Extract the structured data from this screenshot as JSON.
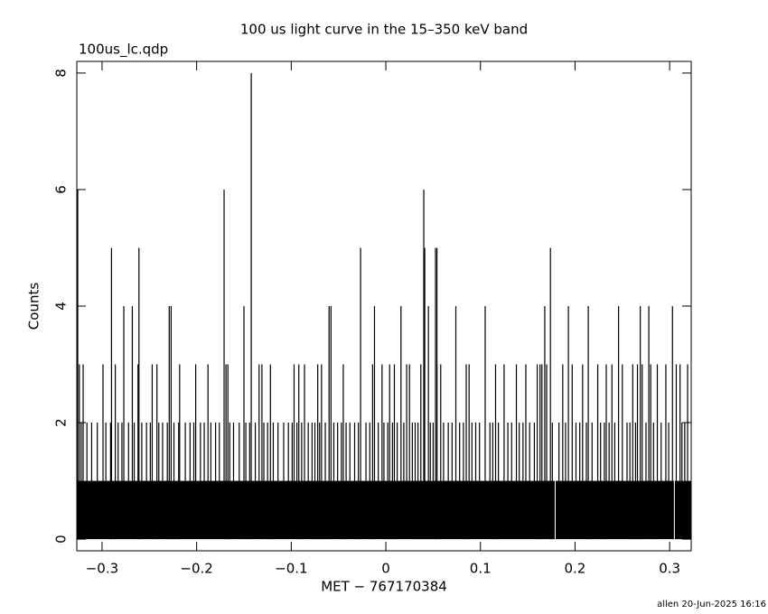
{
  "chart_data": {
    "type": "histogram",
    "title": "100 us light curve in the 15–350 keV band",
    "subtitle": "100us_lc.qdp",
    "x_label": "MET − 767170384",
    "y_label": "Counts",
    "footer": "allen 20-Jun-2025 16:16",
    "xlim": [
      -0.3267,
      0.3228
    ],
    "ylim": [
      -0.2,
      8.2
    ],
    "xticks": [
      {
        "value": -0.3,
        "label": "−0.3"
      },
      {
        "value": -0.2,
        "label": "−0.2"
      },
      {
        "value": -0.1,
        "label": "−0.1"
      },
      0,
      0.1,
      0.2,
      0.3
    ],
    "yticks": [
      0,
      2,
      4,
      6,
      8
    ],
    "series": [
      {
        "color": "#000000",
        "bins": [
          -0.3267,
          0.1785,
          0.1795,
          0.3045,
          0.3055,
          0.3228
        ],
        "values": [
          1,
          0,
          1,
          0,
          1
        ]
      },
      {
        "color": "#000000",
        "x": [
          -0.322,
          -0.316,
          -0.311,
          -0.305,
          -0.296,
          -0.291,
          -0.283,
          -0.279,
          -0.272,
          -0.266,
          -0.258,
          -0.253,
          -0.249,
          -0.24,
          -0.236,
          -0.231,
          -0.224,
          -0.219,
          -0.212,
          -0.207,
          -0.203,
          -0.196,
          -0.192,
          -0.185,
          -0.18,
          -0.176,
          -0.165,
          -0.161,
          -0.155,
          -0.148,
          -0.144,
          -0.138,
          -0.129,
          -0.125,
          -0.119,
          -0.114,
          -0.108,
          -0.103,
          -0.099,
          -0.094,
          -0.089,
          -0.082,
          -0.078,
          -0.075,
          -0.07,
          -0.064,
          -0.055,
          -0.051,
          -0.047,
          -0.042,
          -0.038,
          -0.033,
          -0.029,
          -0.021,
          -0.017,
          -0.008,
          -0.002,
          0.002,
          0.007,
          0.012,
          0.019,
          0.028,
          0.031,
          0.034,
          0.047,
          0.05,
          0.061,
          0.066,
          0.07,
          0.078,
          0.082,
          0.091,
          0.095,
          0.099,
          0.11,
          0.113,
          0.119,
          0.129,
          0.133,
          0.141,
          0.145,
          0.152,
          0.157,
          0.176,
          0.183,
          0.19,
          0.201,
          0.205,
          0.212,
          0.218,
          0.227,
          0.231,
          0.236,
          0.242,
          0.255,
          0.258,
          0.264,
          0.275,
          0.283,
          0.291,
          0.299,
          0.313,
          0.316
        ],
        "values": [
          2,
          2,
          2,
          2,
          2,
          2,
          2,
          2,
          2,
          2,
          2,
          2,
          2,
          2,
          2,
          2,
          2,
          2,
          2,
          2,
          2,
          2,
          2,
          2,
          2,
          2,
          2,
          2,
          2,
          2,
          2,
          2,
          2,
          2,
          2,
          2,
          2,
          2,
          2,
          2,
          2,
          2,
          2,
          2,
          2,
          2,
          2,
          2,
          2,
          2,
          2,
          2,
          2,
          2,
          2,
          2,
          2,
          2,
          2,
          2,
          2,
          2,
          2,
          2,
          2,
          2,
          2,
          2,
          2,
          2,
          2,
          2,
          2,
          2,
          2,
          2,
          2,
          2,
          2,
          2,
          2,
          2,
          2,
          2,
          2,
          2,
          2,
          2,
          2,
          2,
          2,
          2,
          2,
          2,
          2,
          2,
          2,
          2,
          2,
          2,
          2,
          2,
          2
        ]
      },
      {
        "color": "#000000",
        "x": [
          -0.324,
          -0.32,
          -0.299,
          -0.286,
          -0.262,
          -0.247,
          -0.242,
          -0.218,
          -0.201,
          -0.188,
          -0.169,
          -0.167,
          -0.134,
          -0.131,
          -0.122,
          -0.097,
          -0.092,
          -0.086,
          -0.072,
          -0.068,
          -0.045,
          -0.014,
          -0.004,
          0.004,
          0.009,
          0.022,
          0.025,
          0.037,
          0.054,
          0.058,
          0.085,
          0.088,
          0.116,
          0.125,
          0.138,
          0.148,
          0.16,
          0.163,
          0.165,
          0.17,
          0.187,
          0.197,
          0.208,
          0.224,
          0.233,
          0.239,
          0.25,
          0.261,
          0.266,
          0.271,
          0.28,
          0.287,
          0.296,
          0.307,
          0.311,
          0.319
        ],
        "values": [
          3,
          3,
          3,
          3,
          3,
          3,
          3,
          3,
          3,
          3,
          3,
          3,
          3,
          3,
          3,
          3,
          3,
          3,
          3,
          3,
          3,
          3,
          3,
          3,
          3,
          3,
          3,
          3,
          3,
          3,
          3,
          3,
          3,
          3,
          3,
          3,
          3,
          3,
          3,
          3,
          3,
          3,
          3,
          3,
          3,
          3,
          3,
          3,
          3,
          3,
          3,
          3,
          3,
          3,
          3,
          3
        ]
      },
      {
        "color": "#000000",
        "x": [
          -0.3257,
          -0.29,
          -0.277,
          -0.268,
          -0.261,
          -0.229,
          -0.227,
          -0.171,
          -0.15,
          -0.1423,
          -0.06,
          -0.058,
          -0.0267,
          -0.012,
          0.016,
          0.0401,
          0.0411,
          0.045,
          0.0525,
          0.054,
          0.074,
          0.105,
          0.168,
          0.174,
          0.193,
          0.214,
          0.246,
          0.269,
          0.278,
          0.303
        ],
        "values": [
          6,
          5,
          4,
          4,
          5,
          4,
          4,
          6,
          4,
          8,
          4,
          4,
          5,
          4,
          4,
          6,
          5,
          4,
          5,
          5,
          4,
          4,
          4,
          5,
          4,
          4,
          4,
          4,
          4,
          4
        ]
      }
    ]
  }
}
